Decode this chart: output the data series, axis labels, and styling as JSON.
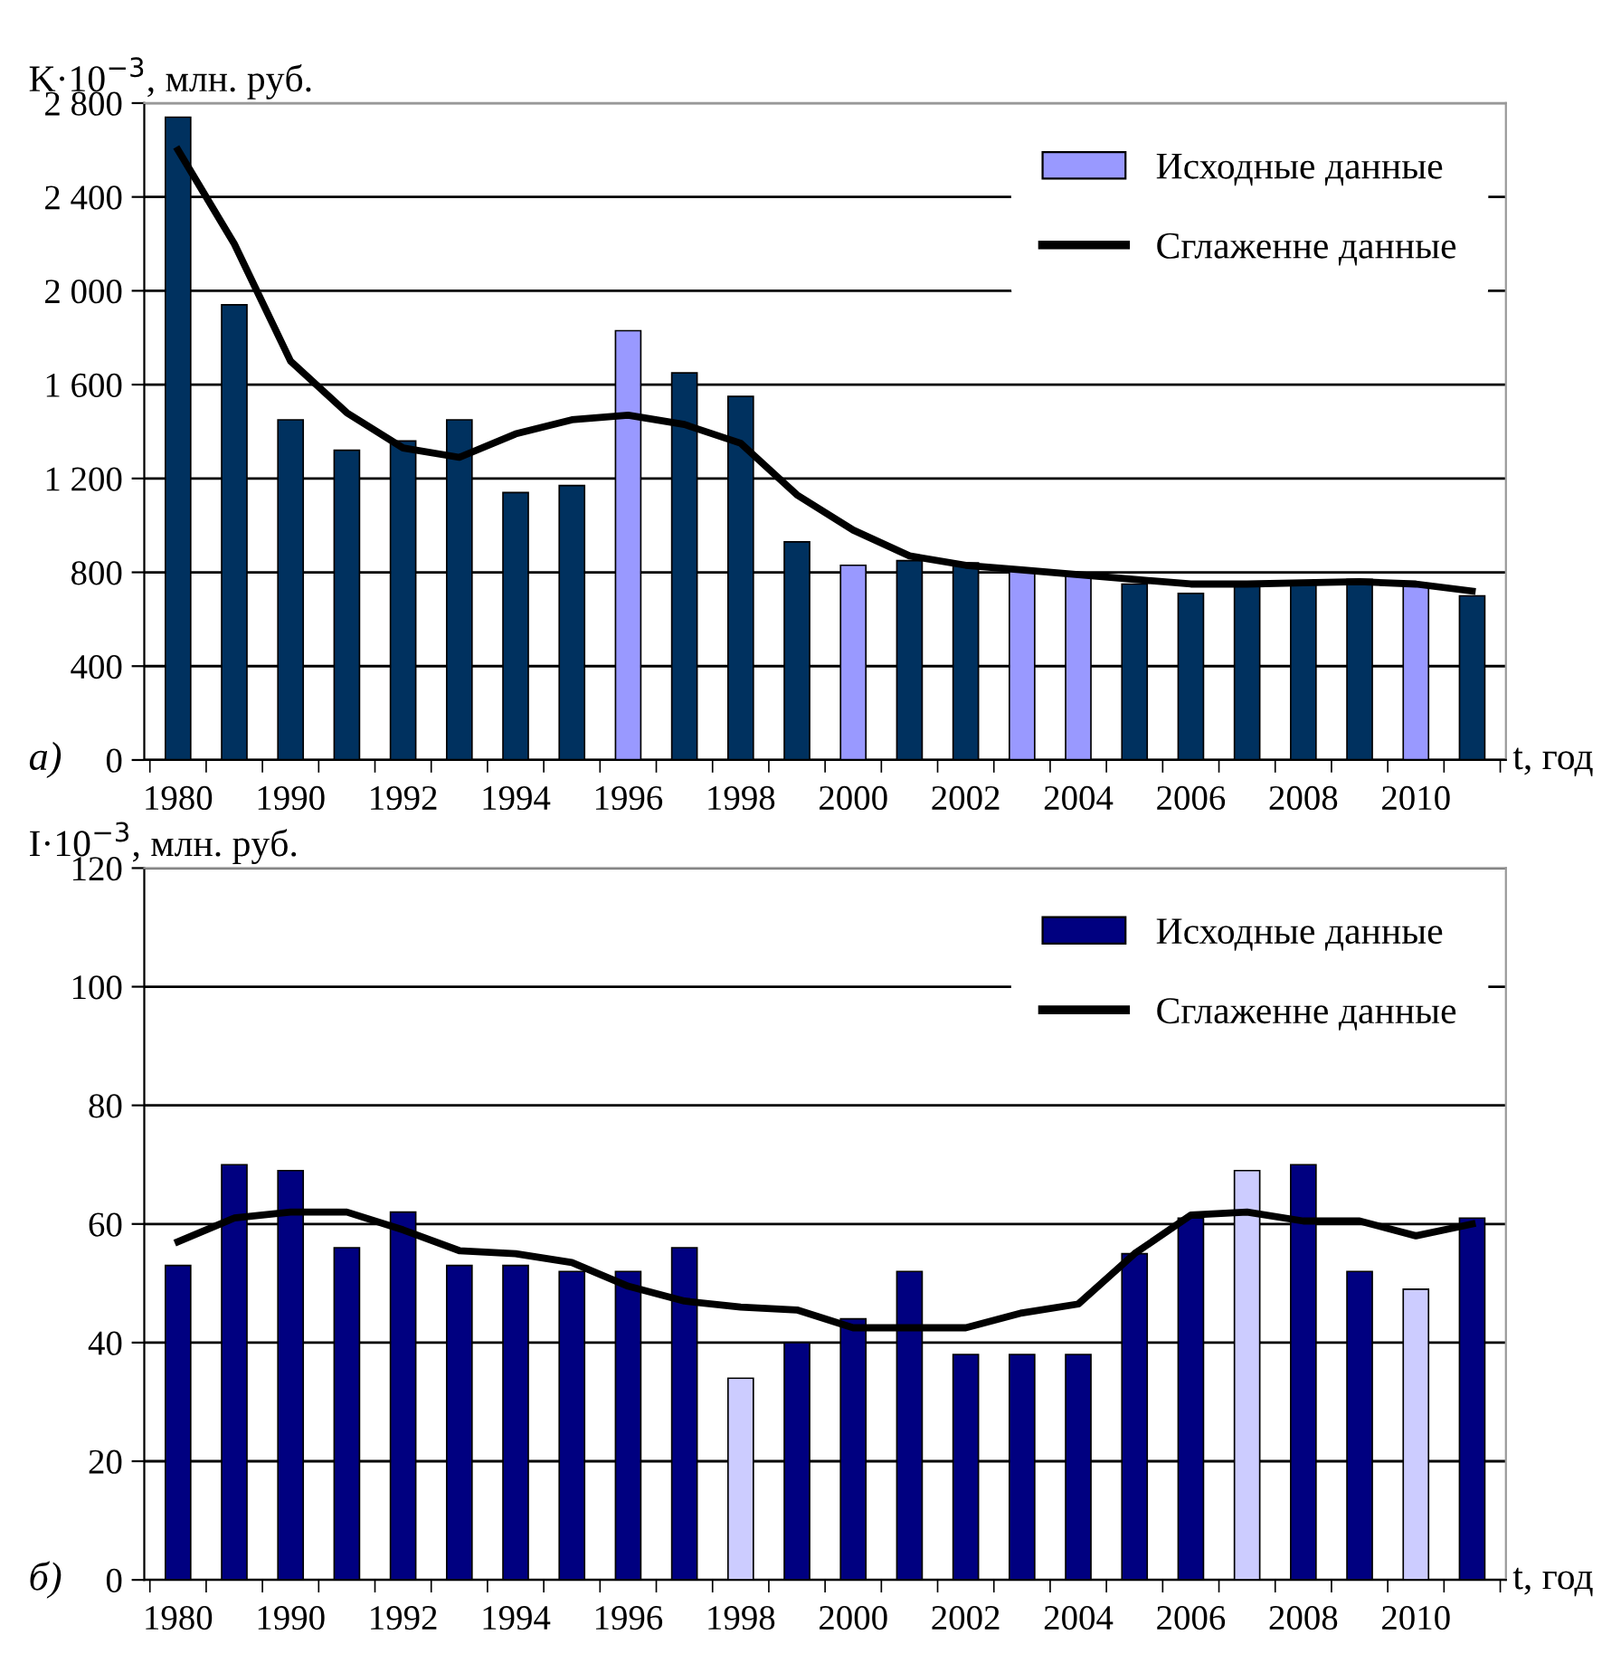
{
  "chart_data": [
    {
      "type": "bar",
      "ylabel": "K·10$^{−3}$, млн. руб.",
      "xlabel": "t, год",
      "annotations": [
        "а)"
      ],
      "categories": [
        "1980",
        null,
        "1990",
        null,
        "1992",
        null,
        "1994",
        null,
        "1996",
        null,
        "1998",
        null,
        "2000",
        null,
        "2002",
        null,
        "2004",
        null,
        "2006",
        null,
        "2008",
        null,
        "2010",
        null
      ],
      "series": [
        {
          "name": "Исходные данные",
          "color": "#9999ff",
          "colors": [
            "#00315f",
            "#00315f",
            "#00315f",
            "#00315f",
            "#00315f",
            "#00315f",
            "#00315f",
            "#00315f",
            "#9999ff",
            "#00315f",
            "#00315f",
            "#00315f",
            "#9999ff",
            "#00315f",
            "#00315f",
            "#9999ff",
            "#9999ff",
            "#00315f",
            "#00315f",
            "#00315f",
            "#00315f",
            "#00315f",
            "#9999ff",
            "#00315f"
          ],
          "values": [
            2740,
            1940,
            1450,
            1320,
            1360,
            1450,
            1140,
            1170,
            1830,
            1650,
            1550,
            930,
            830,
            850,
            840,
            810,
            790,
            750,
            710,
            750,
            750,
            770,
            750,
            700
          ]
        },
        {
          "name": "Сглаженне данные",
          "type": "line",
          "color": "#000000",
          "values": [
            2600,
            2200,
            1700,
            1480,
            1330,
            1290,
            1390,
            1450,
            1470,
            1430,
            1350,
            1130,
            980,
            870,
            830,
            810,
            790,
            770,
            750,
            750,
            755,
            760,
            750,
            720
          ]
        }
      ],
      "ylim": [
        0,
        2800
      ],
      "yticks": [
        0,
        400,
        800,
        {
          "value": 1200,
          "label": "1 200"
        },
        {
          "value": 1600,
          "label": "1 600"
        },
        {
          "value": 2000,
          "label": "2 000"
        },
        {
          "value": 2400,
          "label": "2 400"
        },
        {
          "value": 2800,
          "label": "2 800"
        }
      ],
      "grid": "y",
      "legend": "top right"
    },
    {
      "type": "bar",
      "ylabel": "I·10$^{−3}$, млн. руб.",
      "xlabel": "t, год",
      "annotations": [
        "б)"
      ],
      "categories": [
        "1980",
        null,
        "1990",
        null,
        "1992",
        null,
        "1994",
        null,
        "1996",
        null,
        "1998",
        null,
        "2000",
        null,
        "2002",
        null,
        "2004",
        null,
        "2006",
        null,
        "2008",
        null,
        "2010",
        null
      ],
      "series": [
        {
          "name": "Исходные данные",
          "color": "#000080",
          "colors": [
            "#000080",
            "#000080",
            "#000080",
            "#000080",
            "#000080",
            "#000080",
            "#000080",
            "#000080",
            "#000080",
            "#000080",
            "#ccccff",
            "#000080",
            "#000080",
            "#000080",
            "#000080",
            "#000080",
            "#000080",
            "#000080",
            "#000080",
            "#ccccff",
            "#000080",
            "#000080",
            "#ccccff",
            "#000080"
          ],
          "values": [
            53,
            70,
            69,
            56,
            62,
            53,
            53,
            52,
            52,
            56,
            34,
            40,
            44,
            52,
            38,
            38,
            38,
            55,
            61,
            69,
            70,
            52,
            49,
            61
          ]
        },
        {
          "name": "Сглаженне данные",
          "type": "line",
          "color": "#000000",
          "values": [
            57,
            61,
            62,
            62,
            59,
            55.5,
            55,
            53.5,
            49.5,
            47,
            46,
            45.5,
            42.5,
            42.5,
            42.5,
            45,
            46.5,
            55,
            61.5,
            62,
            60.5,
            60.5,
            58,
            60
          ]
        }
      ],
      "ylim": [
        0,
        120
      ],
      "yticks": [
        0,
        20,
        40,
        60,
        80,
        100,
        120
      ],
      "grid": "y",
      "legend": "top right"
    }
  ]
}
